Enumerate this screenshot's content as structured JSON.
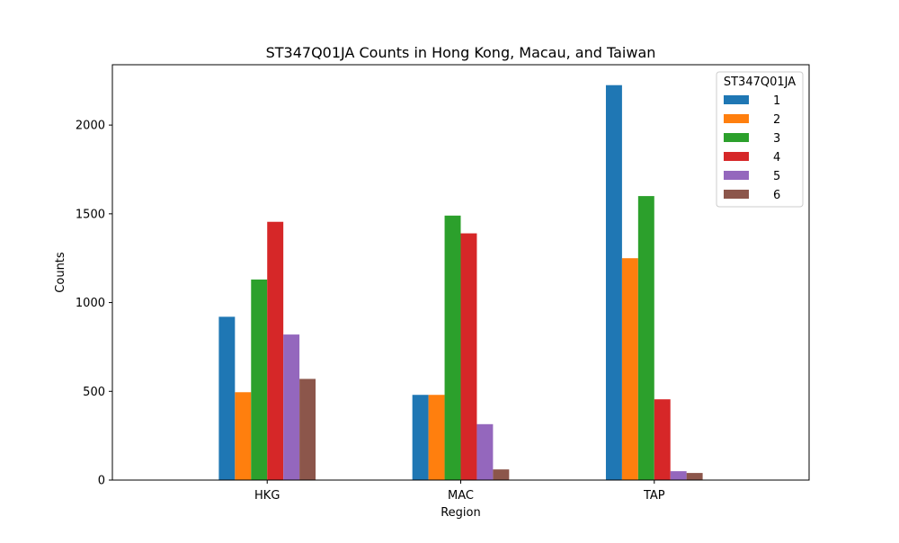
{
  "chart_data": {
    "type": "bar",
    "title": "ST347Q01JA Counts in Hong Kong, Macau, and Taiwan",
    "xlabel": "Region",
    "ylabel": "Counts",
    "categories": [
      "HKG",
      "MAC",
      "TAP"
    ],
    "ylim": [
      0,
      2340
    ],
    "yticks": [
      0,
      500,
      1000,
      1500,
      2000
    ],
    "grid": false,
    "legend": {
      "title": "ST347Q01JA",
      "placement": "top-right"
    },
    "series": [
      {
        "name": "1",
        "color": "#1f77b4",
        "values": [
          920,
          480,
          2225
        ]
      },
      {
        "name": "2",
        "color": "#ff7f0e",
        "values": [
          495,
          480,
          1250
        ]
      },
      {
        "name": "3",
        "color": "#2ca02c",
        "values": [
          1130,
          1490,
          1600
        ]
      },
      {
        "name": "4",
        "color": "#d62728",
        "values": [
          1455,
          1390,
          455
        ]
      },
      {
        "name": "5",
        "color": "#9467bd",
        "values": [
          820,
          315,
          50
        ]
      },
      {
        "name": "6",
        "color": "#8c564b",
        "values": [
          570,
          60,
          40
        ]
      }
    ]
  }
}
